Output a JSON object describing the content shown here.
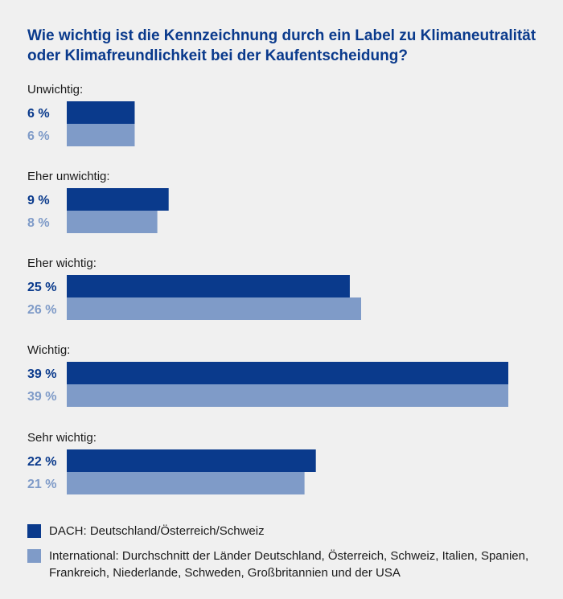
{
  "chart_data": {
    "type": "bar",
    "orientation": "horizontal",
    "title": "Wie wichtig ist die Kennzeichnung durch ein Label zu Klima­neutralität oder Klimafreundlichkeit bei der Kaufentscheidung?",
    "categories": [
      "Unwichtig:",
      "Eher unwichtig:",
      "Eher wichtig:",
      "Wichtig:",
      "Sehr wichtig:"
    ],
    "unit": "%",
    "xlim": [
      0,
      39
    ],
    "grid": false,
    "series": [
      {
        "name": "DACH: Deutschland/Österreich/Schweiz",
        "values": [
          6,
          9,
          25,
          39,
          22
        ],
        "labels": [
          "6 %",
          "9 %",
          "25 %",
          "39 %",
          "22 %"
        ],
        "color": "#0a3a8c"
      },
      {
        "name": "International: Durchschnitt der Länder Deutschland, Österreich, Schweiz, Italien, Spanien, Frankreich, Niederlande, Schweden, Großbritannien und der USA",
        "values": [
          6,
          8,
          26,
          39,
          21
        ],
        "labels": [
          "6 %",
          "8 %",
          "26 %",
          "39 %",
          "21 %"
        ],
        "color": "#7f9bc8"
      }
    ],
    "legend_position": "bottom"
  }
}
